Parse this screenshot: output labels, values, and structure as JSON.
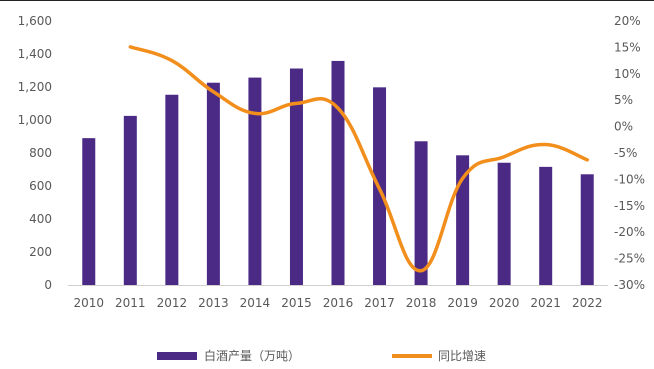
{
  "chart_data": {
    "type": "bar+line",
    "categories": [
      "2010",
      "2011",
      "2012",
      "2013",
      "2014",
      "2015",
      "2016",
      "2017",
      "2018",
      "2019",
      "2020",
      "2021",
      "2022"
    ],
    "series": [
      {
        "name": "白酒产量（万吨）",
        "type": "bar",
        "axis": "left",
        "color": "#4B2A86",
        "values": [
          890,
          1025,
          1153,
          1226,
          1257,
          1312,
          1358,
          1198,
          871,
          786,
          741,
          716,
          671
        ]
      },
      {
        "name": "同比增速",
        "type": "line",
        "axis": "right",
        "color": "#F28E1C",
        "values": [
          null,
          15.1,
          12.5,
          6.6,
          2.5,
          4.4,
          3.5,
          -11.8,
          -27.3,
          -9.8,
          -5.7,
          -3.4,
          -6.3
        ]
      }
    ],
    "left_axis": {
      "ticks": [
        "0",
        "200",
        "400",
        "600",
        "800",
        "1,000",
        "1,200",
        "1,400",
        "1,600"
      ],
      "ylim": [
        0,
        1600
      ]
    },
    "right_axis": {
      "ticks": [
        "-30%",
        "-25%",
        "-20%",
        "-15%",
        "-10%",
        "-5%",
        "0%",
        "5%",
        "10%",
        "15%",
        "20%"
      ],
      "ylim": [
        -30,
        20
      ]
    },
    "legend_position": "bottom",
    "grid": false
  }
}
